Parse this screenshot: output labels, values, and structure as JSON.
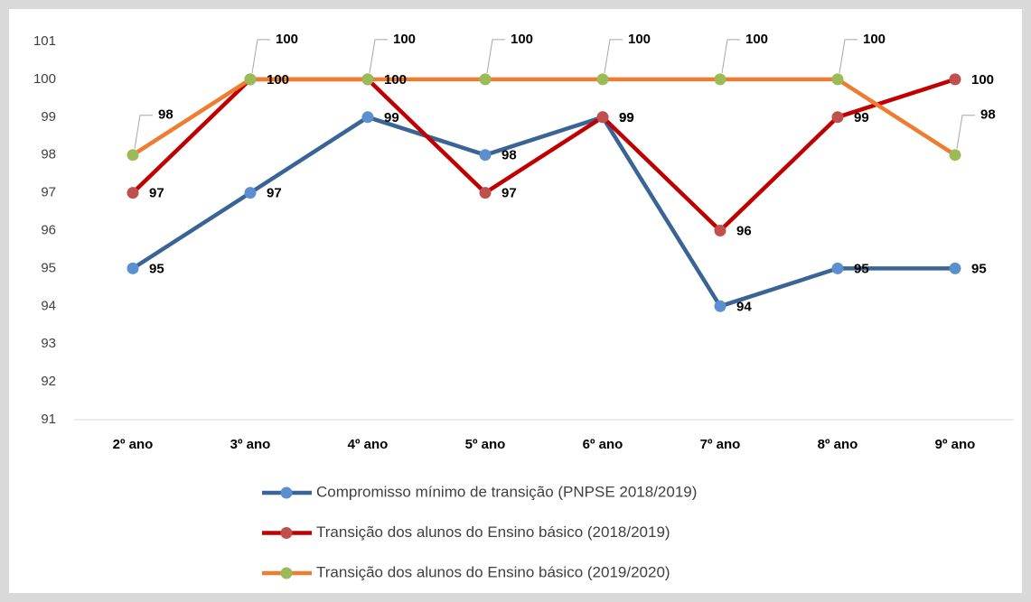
{
  "chart_data": {
    "type": "line",
    "categories": [
      "2º ano",
      "3º ano",
      "4º ano",
      "5º ano",
      "6º ano",
      "7º ano",
      "8º ano",
      "9º ano"
    ],
    "series": [
      {
        "name": "Compromisso mínimo de transição (PNPSE 2018/2019)",
        "color": "#3a6496",
        "marker_color": "#5b8fd0",
        "values": [
          95,
          97,
          99,
          98,
          99,
          94,
          95,
          95
        ]
      },
      {
        "name": "Transição dos alunos do Ensino básico (2018/2019)",
        "color": "#c00000",
        "marker_color": "#c0504d",
        "values": [
          97,
          100,
          100,
          97,
          99,
          96,
          99,
          100
        ]
      },
      {
        "name": "Transição dos alunos do Ensino básico (2019/2020)",
        "color": "#ed7d31",
        "marker_color": "#9bbb59",
        "values": [
          98,
          100,
          100,
          100,
          100,
          100,
          100,
          98
        ]
      }
    ],
    "ylim": [
      91,
      101
    ],
    "yticks": [
      91,
      92,
      93,
      94,
      95,
      96,
      97,
      98,
      99,
      100,
      101
    ],
    "grid": false,
    "legend": "bottom"
  }
}
